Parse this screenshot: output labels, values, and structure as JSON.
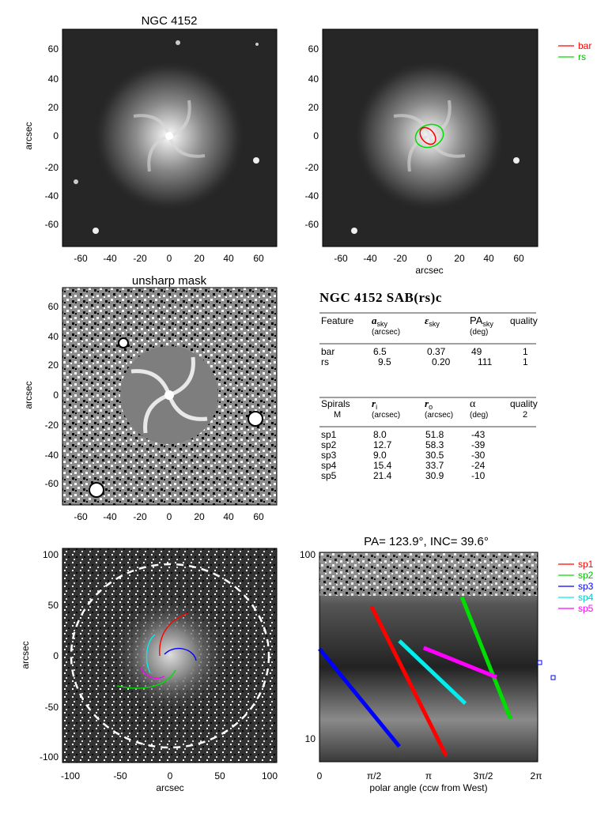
{
  "panels": {
    "top_left": {
      "title": "NGC 4152",
      "ylabel": "arcsec"
    },
    "top_right": {
      "xlabel": "arcsec",
      "legend": [
        {
          "label": "bar",
          "color": "#ff0000"
        },
        {
          "label": "rs",
          "color": "#00dd00"
        }
      ]
    },
    "mid_left": {
      "title": "unsharp mask",
      "ylabel": "arcsec"
    },
    "bottom_left": {
      "xlabel": "arcsec",
      "ylabel": "arcsec"
    },
    "bottom_right": {
      "title": "PA= 123.9°, INC=  39.6°",
      "xlabel": "polar angle (ccw from West)",
      "legend": [
        {
          "label": "sp1",
          "color": "#ff0000"
        },
        {
          "label": "sp2",
          "color": "#00dd00"
        },
        {
          "label": "sp3",
          "color": "#0000ff"
        },
        {
          "label": "sp4",
          "color": "#00eeee"
        },
        {
          "label": "sp5",
          "color": "#ff00ff"
        }
      ]
    }
  },
  "ticks": {
    "arcsec70": [
      "-60",
      "-40",
      "-20",
      "0",
      "20",
      "40",
      "60"
    ],
    "arcsec100": [
      "-100",
      "-50",
      "0",
      "50",
      "100"
    ],
    "polar": [
      "0",
      "π/2",
      "π",
      "3π/2",
      "2π"
    ],
    "log_radius": [
      "10",
      "100"
    ]
  },
  "table": {
    "title": "NGC 4152  SAB(rs)c",
    "features_header": {
      "col1": "Feature",
      "col2": "a",
      "col2_sub": "sky",
      "col2_unit": "(arcsec)",
      "col3": "ε",
      "col3_sub": "sky",
      "col4": "PA",
      "col4_sub": "sky",
      "col4_unit": "(deg)",
      "col5": "quality"
    },
    "features": [
      {
        "name": "bar",
        "a": "6.5",
        "e": "0.37",
        "pa": "49",
        "q": "1"
      },
      {
        "name": "rs",
        "a": "9.5",
        "e": "0.20",
        "pa": "111",
        "q": "1"
      }
    ],
    "spirals_header": {
      "col1": "Spirals",
      "col1_sub": "M",
      "col2": "r",
      "col2_sub": "i",
      "col2_unit": "(arcsec)",
      "col3": "r",
      "col3_sub": "o",
      "col3_unit": "(arcsec)",
      "col4": "α",
      "col4_unit": "(deg)",
      "col5": "quality",
      "col5_sub": "2"
    },
    "spirals": [
      {
        "name": "sp1",
        "ri": "8.0",
        "ro": "51.8",
        "alpha": "-43"
      },
      {
        "name": "sp2",
        "ri": "12.7",
        "ro": "58.3",
        "alpha": "-39"
      },
      {
        "name": "sp3",
        "ri": "9.0",
        "ro": "30.5",
        "alpha": "-30"
      },
      {
        "name": "sp4",
        "ri": "15.4",
        "ro": "33.7",
        "alpha": "-24"
      },
      {
        "name": "sp5",
        "ri": "21.4",
        "ro": "30.9",
        "alpha": "-10"
      }
    ]
  },
  "chart_data": {
    "type": "line",
    "title": "PA= 123.9°, INC=  39.6°",
    "xlabel": "polar angle (ccw from West)",
    "ylabel": "",
    "xlim": [
      0,
      6.2832
    ],
    "ylim": [
      8,
      100
    ],
    "yscale": "log",
    "series": [
      {
        "name": "sp1",
        "color": "#ff0000",
        "x": [
          1.5,
          3.65
        ],
        "y": [
          51.8,
          8.0
        ]
      },
      {
        "name": "sp2",
        "color": "#00dd00",
        "x": [
          4.1,
          5.5
        ],
        "y": [
          58.3,
          12.7
        ]
      },
      {
        "name": "sp3",
        "color": "#0000ff",
        "x": [
          0.0,
          2.3
        ],
        "y": [
          30.5,
          9.0
        ]
      },
      {
        "name": "sp4",
        "color": "#00eeee",
        "x": [
          2.3,
          4.2
        ],
        "y": [
          33.7,
          15.4
        ]
      },
      {
        "name": "sp5",
        "color": "#ff00ff",
        "x": [
          3.0,
          5.1
        ],
        "y": [
          30.9,
          21.4
        ]
      }
    ]
  }
}
